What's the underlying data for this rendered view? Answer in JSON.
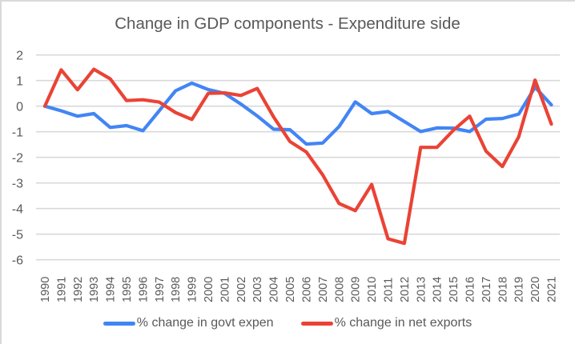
{
  "chart_data": {
    "type": "line",
    "title": "Change in GDP components - Expenditure side",
    "xlabel": "",
    "ylabel": "",
    "ylim": [
      -6,
      2
    ],
    "yticks": [
      "2",
      "1",
      "0",
      "-1",
      "-2",
      "-3",
      "-4",
      "-5",
      "-6"
    ],
    "ytick_values": [
      2,
      1,
      0,
      -1,
      -2,
      -3,
      -4,
      -5,
      -6
    ],
    "grid": true,
    "legend_position": "bottom",
    "x": [
      "1990",
      "1991",
      "1992",
      "1993",
      "1994",
      "1995",
      "1996",
      "1997",
      "1998",
      "1999",
      "2000",
      "2001",
      "2002",
      "2003",
      "2004",
      "2005",
      "2006",
      "2007",
      "2008",
      "2009",
      "2010",
      "2011",
      "2012",
      "2013",
      "2014",
      "2015",
      "2016",
      "2017",
      "2018",
      "2019",
      "2020",
      "2021"
    ],
    "series": [
      {
        "name": "% change in govt expen",
        "color": "#4285f4",
        "values": [
          0,
          -0.18,
          -0.39,
          -0.29,
          -0.83,
          -0.76,
          -0.96,
          -0.18,
          0.6,
          0.9,
          0.65,
          0.5,
          0.08,
          -0.38,
          -0.9,
          -0.92,
          -1.48,
          -1.44,
          -0.8,
          0.17,
          -0.29,
          -0.21,
          -0.6,
          -0.99,
          -0.85,
          -0.86,
          -0.99,
          -0.51,
          -0.48,
          -0.31,
          0.74,
          0.05
        ]
      },
      {
        "name": "% change in net exports",
        "color": "#ea4335",
        "values": [
          0,
          1.42,
          0.64,
          1.44,
          1.07,
          0.22,
          0.25,
          0.16,
          -0.25,
          -0.52,
          0.5,
          0.52,
          0.42,
          0.69,
          -0.42,
          -1.38,
          -1.79,
          -2.68,
          -3.8,
          -4.08,
          -3.06,
          -5.18,
          -5.36,
          -1.61,
          -1.61,
          -0.94,
          -0.39,
          -1.76,
          -2.36,
          -1.2,
          1.02,
          -0.7
        ]
      }
    ]
  }
}
